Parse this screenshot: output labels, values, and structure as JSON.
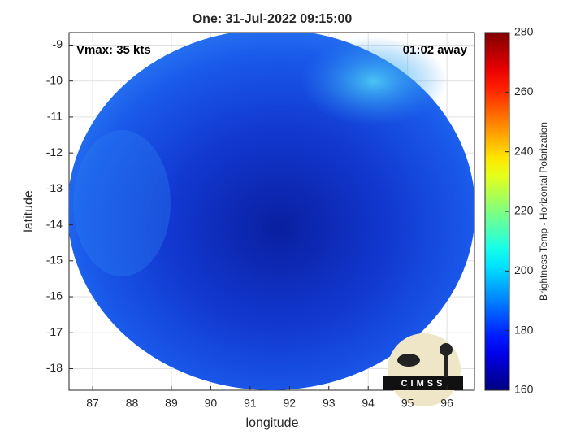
{
  "chart_data": {
    "type": "image",
    "title": "One: 31-Jul-2022 09:15:00",
    "xlabel": "longitude",
    "ylabel": "latitude",
    "annotations": {
      "left": "Vmax: 35 kts",
      "right": "01:02 away"
    },
    "logo_text": "CIMSS",
    "xlim": [
      86.4,
      96.7
    ],
    "xticks": [
      87,
      88,
      89,
      90,
      91,
      92,
      93,
      94,
      95,
      96
    ],
    "ylim": [
      -18.6,
      -8.65
    ],
    "yticks": [
      -9,
      -10,
      -11,
      -12,
      -13,
      -14,
      -15,
      -16,
      -17,
      -18
    ],
    "grid": true,
    "colorbar": {
      "label": "Brightness Temp - Horizontal Polarization",
      "lim": [
        160,
        280
      ],
      "ticks": [
        160,
        180,
        200,
        220,
        240,
        260,
        280
      ],
      "colormap": "jet"
    }
  }
}
